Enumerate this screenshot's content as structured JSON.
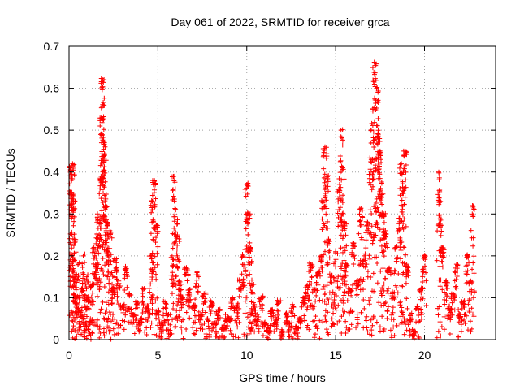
{
  "chart_data": {
    "type": "scatter",
    "title": "Day 061 of 2022, SRMTID for receiver grca",
    "xlabel": "GPS time / hours",
    "ylabel": "SRMTID / TECUs",
    "xlim": [
      0,
      24
    ],
    "ylim": [
      0,
      0.7
    ],
    "xticks": [
      0,
      5,
      10,
      15,
      20
    ],
    "xtick_labels": [
      "0",
      "5",
      "10",
      "15",
      "20"
    ],
    "yticks": [
      0,
      0.1,
      0.2,
      0.3,
      0.4,
      0.5,
      0.6,
      0.7
    ],
    "ytick_labels": [
      "0",
      "0.1",
      "0.2",
      "0.3",
      "0.4",
      "0.5",
      "0.6",
      "0.7"
    ],
    "grid": true,
    "marker": "+",
    "color": "#ff0000",
    "series": [
      {
        "name": "SRMTID",
        "x": [
          0.05,
          0.1,
          0.15,
          0.2,
          0.25,
          0.3,
          0.35,
          0.4,
          0.5,
          0.6,
          0.7,
          0.8,
          0.9,
          1.0,
          1.1,
          1.2,
          1.3,
          1.4,
          1.5,
          1.6,
          1.7,
          1.8,
          1.85,
          1.9,
          1.95,
          2.0,
          2.05,
          2.1,
          2.2,
          2.3,
          2.4,
          2.5,
          2.6,
          2.8,
          3.0,
          3.2,
          3.4,
          3.6,
          3.8,
          4.0,
          4.2,
          4.4,
          4.6,
          4.7,
          4.8,
          4.9,
          5.0,
          5.2,
          5.4,
          5.6,
          5.8,
          5.9,
          6.0,
          6.1,
          6.2,
          6.4,
          6.6,
          6.8,
          7.0,
          7.2,
          7.4,
          7.6,
          7.8,
          8.0,
          8.2,
          8.4,
          8.6,
          8.8,
          9.0,
          9.2,
          9.4,
          9.6,
          9.8,
          10.0,
          10.1,
          10.2,
          10.3,
          10.4,
          10.6,
          10.8,
          11.0,
          11.2,
          11.4,
          11.6,
          11.8,
          12.0,
          12.2,
          12.4,
          12.6,
          12.8,
          13.0,
          13.2,
          13.4,
          13.6,
          13.8,
          14.0,
          14.2,
          14.3,
          14.4,
          14.5,
          14.6,
          14.8,
          15.0,
          15.2,
          15.3,
          15.4,
          15.5,
          15.6,
          15.8,
          16.0,
          16.2,
          16.4,
          16.6,
          16.8,
          17.0,
          17.1,
          17.2,
          17.3,
          17.4,
          17.5,
          17.6,
          17.7,
          17.8,
          18.0,
          18.2,
          18.4,
          18.6,
          18.7,
          18.8,
          18.9,
          19.0,
          19.2,
          19.4,
          19.6,
          19.8,
          20.0,
          20.8,
          20.9,
          21.0,
          21.2,
          21.4,
          21.6,
          21.8,
          22.0,
          22.2,
          22.4,
          22.6,
          22.7
        ],
        "y": [
          0.41,
          0.35,
          0.2,
          0.42,
          0.33,
          0.24,
          0.15,
          0.1,
          0.18,
          0.07,
          0.12,
          0.2,
          0.08,
          0.15,
          0.1,
          0.05,
          0.13,
          0.22,
          0.18,
          0.3,
          0.25,
          0.39,
          0.53,
          0.62,
          0.47,
          0.44,
          0.32,
          0.28,
          0.21,
          0.26,
          0.16,
          0.12,
          0.19,
          0.14,
          0.08,
          0.17,
          0.11,
          0.06,
          0.09,
          0.05,
          0.12,
          0.08,
          0.2,
          0.33,
          0.38,
          0.27,
          0.07,
          0.04,
          0.09,
          0.06,
          0.2,
          0.39,
          0.31,
          0.25,
          0.14,
          0.1,
          0.17,
          0.12,
          0.08,
          0.16,
          0.06,
          0.11,
          0.05,
          0.09,
          0.04,
          0.07,
          0.03,
          0.06,
          0.05,
          0.1,
          0.08,
          0.14,
          0.2,
          0.37,
          0.3,
          0.22,
          0.13,
          0.08,
          0.06,
          0.1,
          0.04,
          0.03,
          0.07,
          0.05,
          0.09,
          0.02,
          0.06,
          0.04,
          0.08,
          0.03,
          0.05,
          0.1,
          0.13,
          0.18,
          0.12,
          0.16,
          0.2,
          0.33,
          0.46,
          0.39,
          0.24,
          0.15,
          0.21,
          0.36,
          0.5,
          0.41,
          0.28,
          0.18,
          0.12,
          0.23,
          0.14,
          0.31,
          0.2,
          0.28,
          0.43,
          0.55,
          0.66,
          0.6,
          0.49,
          0.45,
          0.35,
          0.3,
          0.26,
          0.17,
          0.11,
          0.22,
          0.29,
          0.42,
          0.36,
          0.45,
          0.18,
          0.06,
          0.02,
          0.08,
          0.12,
          0.2,
          0.4,
          0.33,
          0.22,
          0.14,
          0.08,
          0.11,
          0.18,
          0.06,
          0.09,
          0.2,
          0.14,
          0.32
        ]
      }
    ]
  }
}
